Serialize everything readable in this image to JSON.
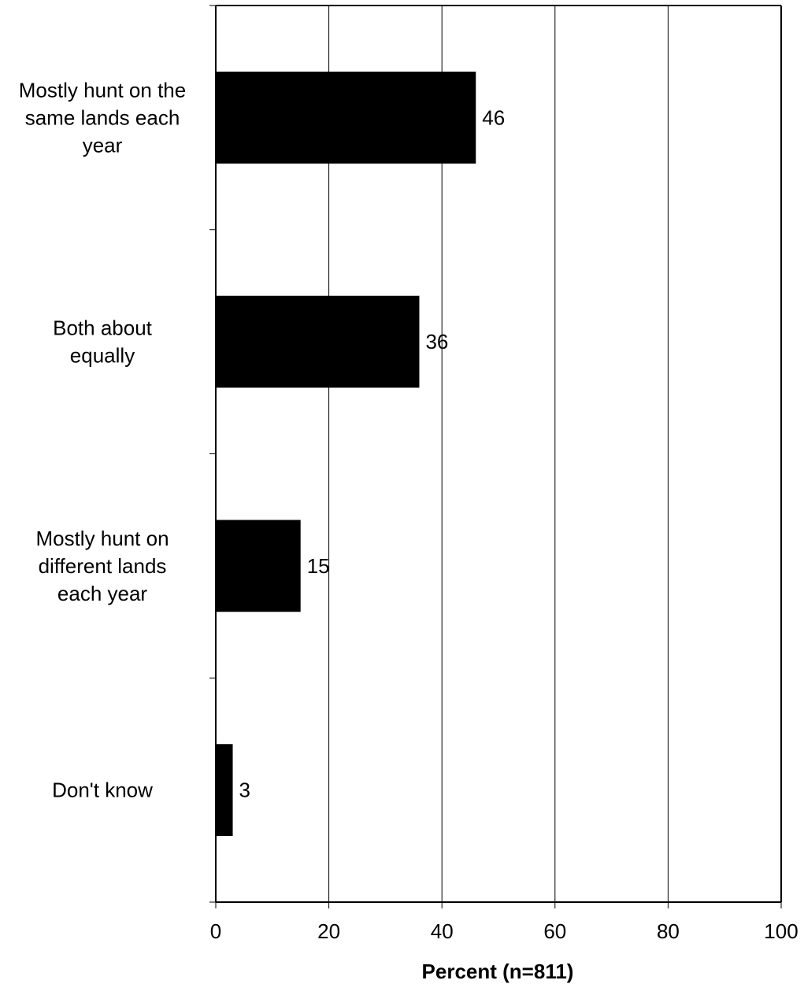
{
  "chart_data": {
    "type": "bar",
    "orientation": "horizontal",
    "categories": [
      [
        "Mostly hunt on the",
        "same lands each",
        "year"
      ],
      [
        "Both about",
        "equally"
      ],
      [
        "Mostly hunt on",
        "different lands",
        "each year"
      ],
      [
        "Don't know"
      ]
    ],
    "values": [
      46,
      36,
      15,
      3
    ],
    "data_labels": [
      "46",
      "36",
      "15",
      "3"
    ],
    "xlabel": "Percent (n=811)",
    "xlim": [
      0,
      100
    ],
    "xticks": [
      0,
      20,
      40,
      60,
      80,
      100
    ],
    "xtick_labels": [
      "0",
      "20",
      "40",
      "60",
      "80",
      "100"
    ],
    "grid": "vertical",
    "bar_color": "#000000",
    "gridline_color": "#000000"
  }
}
